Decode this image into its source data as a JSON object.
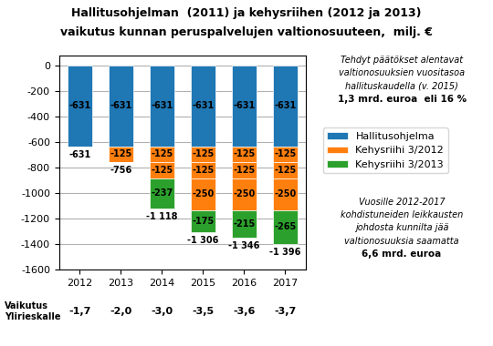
{
  "chart_data": {
    "type": "bar",
    "stacked": true,
    "title": "Hallitusohjelman  (2011) ja kehysriihen (2012 ja 2013)",
    "subtitle": "vaikutus kunnan peruspalvelujen valtionosuuteen,  milj. €",
    "categories": [
      "2012",
      "2013",
      "2014",
      "2015",
      "2016",
      "2017"
    ],
    "series": [
      {
        "name": "Hallitusohjelma",
        "values": [
          -631,
          -631,
          -631,
          -631,
          -631,
          -631
        ]
      },
      {
        "name": "Kehysriihi 3/2012",
        "values": [
          0,
          -125,
          -125,
          -125,
          -125,
          -125
        ],
        "value_labels": [
          null,
          "-125",
          "-125",
          "-125",
          "-125",
          "-125"
        ]
      },
      {
        "name": "Kehysriihi 3/2012",
        "values": [
          0,
          0,
          -125,
          -125,
          -125,
          -125
        ],
        "value_labels": [
          null,
          null,
          "-125",
          "-125",
          "-125",
          "-125"
        ]
      },
      {
        "name": "Kehysriihi 3/2012",
        "values": [
          0,
          0,
          0,
          -250,
          -250,
          -250
        ],
        "value_labels": [
          null,
          null,
          null,
          "-250",
          "-250",
          "-250"
        ]
      },
      {
        "name": "Kehysriihi 3/2013",
        "values": [
          0,
          0,
          -237,
          -175,
          -215,
          -265
        ],
        "value_labels": [
          null,
          null,
          "-237",
          "-175",
          "-215",
          "-265"
        ]
      }
    ],
    "data_labels": true,
    "totals": [
      -631,
      -756,
      -1118,
      -1306,
      -1346,
      -1396
    ],
    "total_labels": [
      "-631",
      "-756",
      "-1 118",
      "-1 306",
      "-1 346",
      "-1 396"
    ],
    "ylim": [
      -1600,
      80
    ],
    "yticks": [
      0,
      -200,
      -400,
      -600,
      -800,
      -1000,
      -1200,
      -1400,
      -1600
    ],
    "grid": true,
    "legend": "center left",
    "row_label": "Vaikutus\nYlirieskalle",
    "row_values": [
      "-1,7",
      "-2,0",
      "-3,0",
      "-3,5",
      "-3,6",
      "-3,7"
    ],
    "annotations": [
      {
        "lines": [
          "Tehdyt päätökset alentavat",
          "valtionosuuksien vuositasoa",
          "hallituskaudella (v. 2015)"
        ],
        "bold": "1,3 mrd. euroa  eli 16 %"
      },
      {
        "lines": [
          "Vuosille 2012-2017",
          "kohdistuneiden leikkausten",
          "johdosta kunnilta jää",
          "valtionosuuksia saamatta"
        ],
        "bold": "6,6 mrd. euroa"
      }
    ]
  }
}
